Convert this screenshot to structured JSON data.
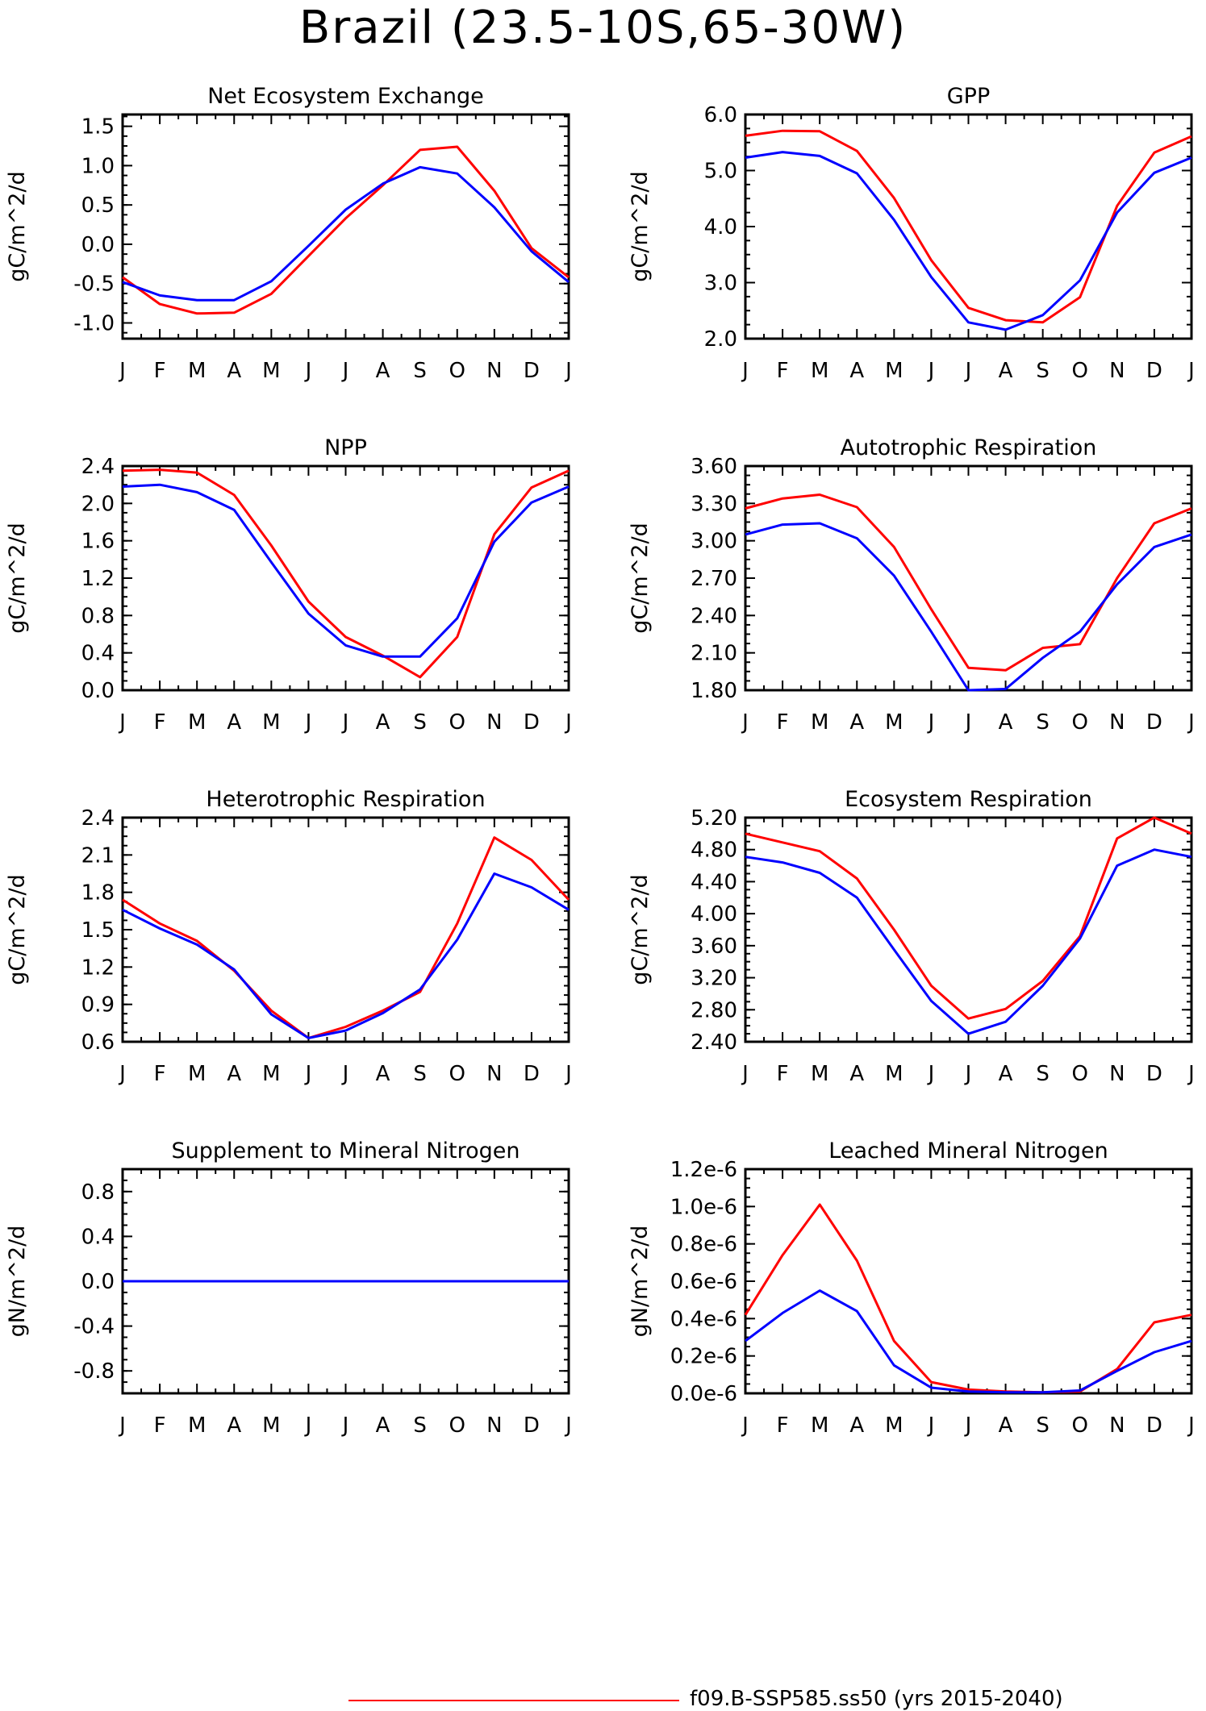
{
  "title": "Brazil (23.5-10S,65-30W)",
  "legend": [
    {
      "label": "f09.B-SSP585.ss50 (yrs 2015-2040)",
      "color": "#ff0000"
    }
  ],
  "colors": {
    "series_a": "#ff0000",
    "series_b": "#0000ff"
  },
  "chart_data": [
    {
      "type": "line",
      "title": "Net Ecosystem Exchange",
      "ylabel": "gC/m^2/d",
      "x": [
        "J",
        "F",
        "M",
        "A",
        "M",
        "J",
        "J",
        "A",
        "S",
        "O",
        "N",
        "D",
        "J"
      ],
      "ylim": [
        -1.2,
        1.65
      ],
      "yticks": [
        -1.0,
        -0.5,
        0.0,
        0.5,
        1.0,
        1.5
      ],
      "yticklabels": [
        "-1.0",
        "-0.5",
        "0.0",
        "0.5",
        "1.0",
        "1.5"
      ],
      "series": [
        {
          "color": "#ff0000",
          "values": [
            -0.42,
            -0.76,
            -0.88,
            -0.87,
            -0.63,
            -0.15,
            0.33,
            0.75,
            1.2,
            1.24,
            0.68,
            -0.05,
            -0.42
          ]
        },
        {
          "color": "#0000ff",
          "values": [
            -0.48,
            -0.65,
            -0.71,
            -0.71,
            -0.47,
            -0.02,
            0.44,
            0.77,
            0.98,
            0.9,
            0.47,
            -0.09,
            -0.48
          ]
        }
      ]
    },
    {
      "type": "line",
      "title": "GPP",
      "ylabel": "gC/m^2/d",
      "x": [
        "J",
        "F",
        "M",
        "A",
        "M",
        "J",
        "J",
        "A",
        "S",
        "O",
        "N",
        "D",
        "J"
      ],
      "ylim": [
        2.0,
        6.0
      ],
      "yticks": [
        2.0,
        3.0,
        4.0,
        5.0,
        6.0
      ],
      "yticklabels": [
        "2.0",
        "3.0",
        "4.0",
        "5.0",
        "6.0"
      ],
      "series": [
        {
          "color": "#ff0000",
          "values": [
            5.62,
            5.71,
            5.7,
            5.35,
            4.51,
            3.4,
            2.55,
            2.33,
            2.29,
            2.74,
            4.37,
            5.32,
            5.61
          ]
        },
        {
          "color": "#0000ff",
          "values": [
            5.23,
            5.33,
            5.26,
            4.95,
            4.12,
            3.1,
            2.29,
            2.16,
            2.42,
            3.04,
            4.25,
            4.96,
            5.23
          ]
        }
      ]
    },
    {
      "type": "line",
      "title": "NPP",
      "ylabel": "gC/m^2/d",
      "x": [
        "J",
        "F",
        "M",
        "A",
        "M",
        "J",
        "J",
        "A",
        "S",
        "O",
        "N",
        "D",
        "J"
      ],
      "ylim": [
        0.0,
        2.4
      ],
      "yticks": [
        0.0,
        0.4,
        0.8,
        1.2,
        1.6,
        2.0,
        2.4
      ],
      "yticklabels": [
        "0.0",
        "0.4",
        "0.8",
        "1.2",
        "1.6",
        "2.0",
        "2.4"
      ],
      "series": [
        {
          "color": "#ff0000",
          "values": [
            2.35,
            2.36,
            2.33,
            2.09,
            1.55,
            0.95,
            0.57,
            0.37,
            0.14,
            0.57,
            1.67,
            2.17,
            2.35
          ]
        },
        {
          "color": "#0000ff",
          "values": [
            2.18,
            2.2,
            2.12,
            1.93,
            1.37,
            0.82,
            0.48,
            0.36,
            0.36,
            0.77,
            1.59,
            2.01,
            2.18
          ]
        }
      ]
    },
    {
      "type": "line",
      "title": "Autotrophic Respiration",
      "ylabel": "gC/m^2/d",
      "x": [
        "J",
        "F",
        "M",
        "A",
        "M",
        "J",
        "J",
        "A",
        "S",
        "O",
        "N",
        "D",
        "J"
      ],
      "ylim": [
        1.8,
        3.6
      ],
      "yticks": [
        1.8,
        2.1,
        2.4,
        2.7,
        3.0,
        3.3,
        3.6
      ],
      "yticklabels": [
        "1.80",
        "2.10",
        "2.40",
        "2.70",
        "3.00",
        "3.30",
        "3.60"
      ],
      "series": [
        {
          "color": "#ff0000",
          "values": [
            3.26,
            3.34,
            3.37,
            3.27,
            2.95,
            2.45,
            1.98,
            1.96,
            2.14,
            2.17,
            2.7,
            3.14,
            3.26
          ]
        },
        {
          "color": "#0000ff",
          "values": [
            3.05,
            3.13,
            3.14,
            3.02,
            2.72,
            2.27,
            1.8,
            1.81,
            2.06,
            2.27,
            2.65,
            2.95,
            3.05
          ]
        }
      ]
    },
    {
      "type": "line",
      "title": "Heterotrophic Respiration",
      "ylabel": "gC/m^2/d",
      "x": [
        "J",
        "F",
        "M",
        "A",
        "M",
        "J",
        "J",
        "A",
        "S",
        "O",
        "N",
        "D",
        "J"
      ],
      "ylim": [
        0.6,
        2.4
      ],
      "yticks": [
        0.6,
        0.9,
        1.2,
        1.5,
        1.8,
        2.1,
        2.4
      ],
      "yticklabels": [
        "0.6",
        "0.9",
        "1.2",
        "1.5",
        "1.8",
        "2.1",
        "2.4"
      ],
      "series": [
        {
          "color": "#ff0000",
          "values": [
            1.74,
            1.55,
            1.41,
            1.17,
            0.85,
            0.63,
            0.72,
            0.85,
            1.0,
            1.55,
            2.24,
            2.06,
            1.74
          ]
        },
        {
          "color": "#0000ff",
          "values": [
            1.66,
            1.51,
            1.38,
            1.18,
            0.82,
            0.63,
            0.69,
            0.83,
            1.02,
            1.42,
            1.95,
            1.84,
            1.66
          ]
        }
      ]
    },
    {
      "type": "line",
      "title": "Ecosystem Respiration",
      "ylabel": "gC/m^2/d",
      "x": [
        "J",
        "F",
        "M",
        "A",
        "M",
        "J",
        "J",
        "A",
        "S",
        "O",
        "N",
        "D",
        "J"
      ],
      "ylim": [
        2.4,
        5.2
      ],
      "yticks": [
        2.4,
        2.8,
        3.2,
        3.6,
        4.0,
        4.4,
        4.8,
        5.2
      ],
      "yticklabels": [
        "2.40",
        "2.80",
        "3.20",
        "3.60",
        "4.00",
        "4.40",
        "4.80",
        "5.20"
      ],
      "series": [
        {
          "color": "#ff0000",
          "values": [
            5.0,
            4.89,
            4.78,
            4.44,
            3.8,
            3.1,
            2.69,
            2.81,
            3.16,
            3.72,
            4.94,
            5.2,
            5.0
          ]
        },
        {
          "color": "#0000ff",
          "values": [
            4.71,
            4.64,
            4.51,
            4.2,
            3.55,
            2.91,
            2.5,
            2.65,
            3.1,
            3.69,
            4.6,
            4.8,
            4.71
          ]
        }
      ]
    },
    {
      "type": "line",
      "title": "Supplement to Mineral Nitrogen",
      "ylabel": "gN/m^2/d",
      "x": [
        "J",
        "F",
        "M",
        "A",
        "M",
        "J",
        "J",
        "A",
        "S",
        "O",
        "N",
        "D",
        "J"
      ],
      "ylim": [
        -1.0,
        1.0
      ],
      "yticks": [
        -0.8,
        -0.4,
        0.0,
        0.4,
        0.8
      ],
      "yticklabels": [
        "-0.8",
        "-0.4",
        "0.0",
        "0.4",
        "0.8"
      ],
      "series": [
        {
          "color": "#ff0000",
          "values": [
            0,
            0,
            0,
            0,
            0,
            0,
            0,
            0,
            0,
            0,
            0,
            0,
            0
          ]
        },
        {
          "color": "#0000ff",
          "values": [
            0,
            0,
            0,
            0,
            0,
            0,
            0,
            0,
            0,
            0,
            0,
            0,
            0
          ]
        }
      ]
    },
    {
      "type": "line",
      "title": "Leached Mineral Nitrogen",
      "ylabel": "gN/m^2/d",
      "x": [
        "J",
        "F",
        "M",
        "A",
        "M",
        "J",
        "J",
        "A",
        "S",
        "O",
        "N",
        "D",
        "J"
      ],
      "ylim": [
        0.0,
        1.2e-06
      ],
      "yticks": [
        0.0,
        2e-07,
        4e-07,
        6e-07,
        8e-07,
        1e-06,
        1.2e-06
      ],
      "yticklabels": [
        "0.0e-6",
        "0.2e-6",
        "0.4e-6",
        "0.6e-6",
        "0.8e-6",
        "1.0e-6",
        "1.2e-6"
      ],
      "series": [
        {
          "color": "#ff0000",
          "values": [
            4.2e-07,
            7.4e-07,
            1.01e-06,
            7.1e-07,
            2.8e-07,
            6e-08,
            2e-08,
            1e-08,
            5e-09,
            1e-08,
            1.3e-07,
            3.8e-07,
            4.2e-07
          ]
        },
        {
          "color": "#0000ff",
          "values": [
            2.8e-07,
            4.3e-07,
            5.5e-07,
            4.4e-07,
            1.5e-07,
            3e-08,
            1e-08,
            5e-09,
            5e-09,
            1.5e-08,
            1.2e-07,
            2.2e-07,
            2.8e-07
          ]
        }
      ]
    }
  ]
}
